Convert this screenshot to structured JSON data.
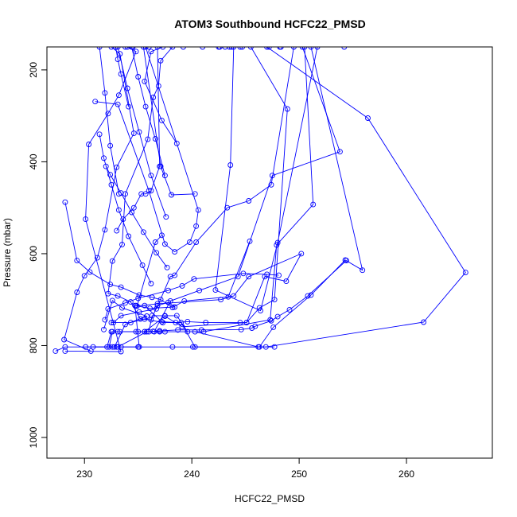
{
  "chart_data": {
    "type": "line",
    "title": "ATOM3 Southbound HCFC22_PMSD",
    "xlabel": "HCFC22_PMSD",
    "ylabel": "Pressure (mbar)",
    "xlim": [
      226.5,
      268
    ],
    "ylim": [
      1045,
      150
    ],
    "y_reversed": true,
    "xticks": [
      230,
      240,
      250,
      260
    ],
    "yticks": [
      200,
      400,
      600,
      800,
      1000
    ],
    "series_color": "#0000FF",
    "marker": "open-circle",
    "series": [
      {
        "x": [
          227.3,
          228.2,
          232.6,
          233.4,
          235.0,
          238.2,
          240.1,
          247.7
        ],
        "y": [
          812,
          803,
          803,
          803,
          803,
          803,
          803,
          803
        ]
      },
      {
        "x": [
          230.8,
          233.1,
          235.8,
          237.5,
          240.3,
          246.2,
          246.9,
          261.6,
          265.5,
          256.4,
          247.0,
          243.5,
          236.0,
          232.5,
          233.3,
          234.6,
          233.0,
          231.9,
          231.2,
          230.0,
          229.3,
          228.1,
          230.6
        ],
        "y": [
          803,
          803,
          770,
          770,
          770,
          803,
          803,
          749,
          641,
          305,
          150,
          150,
          150,
          150,
          165,
          338,
          412,
          548,
          609,
          648,
          684,
          787,
          812
        ]
      },
      {
        "x": [
          228.2,
          233.4,
          230.1,
          230.4,
          232.2,
          233.2,
          234.8,
          234.0,
          234.5
        ],
        "y": [
          812,
          813,
          525,
          362,
          295,
          255,
          160,
          150,
          150
        ]
      },
      {
        "x": [
          230.1,
          232.3,
          232.6,
          233.3,
          234.8,
          237.0,
          236.0,
          236.3,
          237.5,
          238.6,
          239.6,
          241.1,
          247.3,
          247.9,
          251.3,
          250.5,
          248.2,
          244.5,
          242.5,
          235.5,
          237.1,
          238.1,
          240.3
        ],
        "y": [
          803,
          803,
          770,
          770,
          770,
          770,
          770,
          735,
          735,
          735,
          770,
          770,
          744,
          581,
          493,
          150,
          150,
          150,
          150,
          150,
          410,
          472,
          470
        ]
      },
      {
        "x": [
          231.8,
          232.6,
          233.5,
          235.8,
          233.8,
          232.8,
          232.1,
          232.5,
          235.6,
          237.5,
          239.1,
          245.1,
          246.3,
          247.7,
          248.9,
          245.5,
          243.9,
          243.6,
          242.2,
          246.4,
          248.0,
          251.7,
          254.2
        ],
        "y": [
          765,
          702,
          718,
          736,
          754,
          803,
          803,
          770,
          770,
          736,
          759,
          750,
          718,
          700,
          285,
          150,
          150,
          407,
          679,
          724,
          576,
          150,
          150
        ]
      },
      {
        "x": [
          233.0,
          235.1,
          234.7,
          236.1,
          238.4,
          237.8,
          236.8,
          236.2,
          235.2,
          234.3,
          233.1,
          232.2,
          232.6,
          233.5,
          233.8,
          235.9,
          236.4,
          236.9,
          237.1,
          238.2,
          239.2
        ],
        "y": [
          803,
          803,
          713,
          719,
          716,
          706,
          713,
          744,
          742,
          705,
          692,
          687,
          616,
          580,
          470,
          351,
          260,
          235,
          180,
          150,
          150
        ]
      },
      {
        "x": [
          232.5,
          234.3,
          235.6,
          237.3,
          239.0,
          240.3,
          246.3,
          247.6,
          251.1,
          254.3,
          255.9,
          251.1
        ],
        "y": [
          750,
          750,
          742,
          750,
          750,
          803,
          803,
          760,
          690,
          614,
          636,
          150
        ]
      },
      {
        "x": [
          234.8,
          235.6,
          237.2,
          238.5,
          239.6,
          241.3,
          244.5,
          245.1,
          246.8,
          248.8,
          250.2,
          245.3,
          243.9,
          242.7,
          236.8,
          234.9,
          236.6,
          237.2
        ],
        "y": [
          713,
          713,
          748,
          750,
          748,
          750,
          750,
          750,
          650,
          660,
          600,
          650,
          692,
          700,
          709,
          714,
          575,
          560
        ]
      },
      {
        "x": [
          235.6,
          236.5,
          238.0,
          240.7,
          244.3,
          247.5,
          253.8,
          250.3,
          244.7,
          242.6,
          236.8,
          237.0,
          236.2,
          235.7,
          235.3,
          234.6,
          233.6,
          233.0
        ],
        "y": [
          770,
          770,
          703,
          680,
          650,
          430,
          378,
          150,
          150,
          150,
          150,
          410,
          463,
          470,
          470,
          500,
          525,
          550
        ]
      },
      {
        "x": [
          232.7,
          233.4,
          235.1,
          236.7,
          238.0,
          238.4,
          240.4,
          243.3,
          245.3,
          247.4,
          249.5,
          248.3,
          247.2,
          243.7,
          243.1,
          241.0,
          237.3,
          236.2,
          235.6,
          237.2,
          238.6
        ],
        "y": [
          750,
          735,
          727,
          720,
          650,
          647,
          575,
          500,
          485,
          450,
          150,
          150,
          150,
          150,
          150,
          150,
          150,
          160,
          225,
          310,
          360
        ]
      },
      {
        "x": [
          231.0,
          233.1,
          236.0,
          237.5,
          238.4,
          239.8,
          240.4,
          240.6,
          235.7,
          233.8,
          232.9,
          233.1,
          233.4,
          234.1
        ],
        "y": [
          269,
          275,
          463,
          579,
          596,
          575,
          540,
          505,
          150,
          150,
          150,
          177,
          209,
          280
        ]
      },
      {
        "x": [
          228.2,
          229.3,
          230.5,
          232.4,
          233.4,
          235.1,
          236.3,
          237.1,
          238.2,
          239.3,
          243.4,
          245.4
        ],
        "y": [
          488,
          615,
          640,
          667,
          673,
          690,
          695,
          700,
          717,
          703,
          694,
          573
        ]
      },
      {
        "x": [
          233.1,
          235.0,
          236.4,
          237.0,
          238.7,
          240.9,
          244.6,
          245.6,
          245.9,
          247.4,
          248.0,
          249.1,
          250.8,
          254.4
        ],
        "y": [
          770,
          770,
          769,
          768,
          766,
          766,
          765,
          762,
          758,
          746,
          737,
          722,
          692,
          615
        ]
      },
      {
        "x": [
          231.9,
          232.2,
          233.8,
          235.0,
          237.8,
          239.1,
          240.2,
          244.8,
          247.0,
          248.1
        ],
        "y": [
          744,
          720,
          707,
          697,
          680,
          670,
          655,
          643,
          645,
          647
        ]
      },
      {
        "x": [
          232.0,
          232.4,
          233.4,
          234.4,
          235.5,
          236.7,
          237.7
        ],
        "y": [
          410,
          428,
          468,
          510,
          553,
          598,
          630
        ]
      },
      {
        "x": [
          231.4,
          231.8,
          232.5,
          233.2,
          234.1,
          235.4,
          236.2
        ],
        "y": [
          340,
          392,
          450,
          505,
          562,
          625,
          665
        ]
      },
      {
        "x": [
          233.1,
          234.0,
          235.1,
          236.2,
          237.6
        ],
        "y": [
          150,
          240,
          335,
          430,
          520
        ]
      },
      {
        "x": [
          234.4,
          235.0,
          235.7,
          236.6,
          237.5
        ],
        "y": [
          150,
          215,
          280,
          350,
          430
        ]
      },
      {
        "x": [
          231.4,
          231.9,
          232.4,
          233.2
        ],
        "y": [
          150,
          250,
          365,
          470
        ]
      }
    ]
  }
}
